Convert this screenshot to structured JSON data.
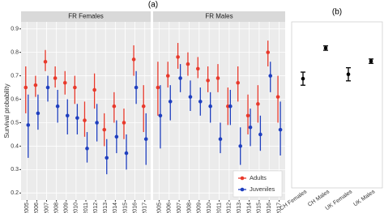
{
  "chart_data": [
    {
      "type": "errorbar",
      "panel_label": "(a)",
      "ylabel": "Survival probability",
      "x": [
        2005,
        2006,
        2007,
        2008,
        2009,
        2010,
        2011,
        2012,
        2013,
        2014,
        2015,
        2016,
        2017
      ],
      "xlim": [
        2004.4,
        2017.6
      ],
      "xticks": [
        2005,
        2006,
        2007,
        2008,
        2009,
        2010,
        2011,
        2012,
        2013,
        2014,
        2015,
        2016,
        2017
      ],
      "ylim": [
        0.17,
        0.93
      ],
      "yticks": [
        0.2,
        0.3,
        0.4,
        0.5,
        0.6,
        0.7,
        0.8,
        0.9
      ],
      "grid": true,
      "legend_position": "bottom right",
      "series": [
        {
          "name": "Adults",
          "color": "#e8392b"
        },
        {
          "name": "Juveniles",
          "color": "#1f3fbf"
        }
      ],
      "facets": [
        {
          "title": "FR Females",
          "values": [
            [
              0.65,
              0.66,
              0.76,
              0.69,
              0.67,
              0.65,
              0.51,
              0.64,
              0.47,
              0.57,
              0.5,
              0.77,
              0.57
            ],
            [
              0.49,
              0.54,
              0.65,
              0.57,
              0.53,
              0.52,
              0.39,
              0.5,
              0.35,
              0.44,
              0.37,
              0.65,
              0.43
            ]
          ],
          "lower": [
            [
              0.54,
              0.61,
              0.72,
              0.65,
              0.62,
              0.58,
              0.44,
              0.56,
              0.4,
              0.5,
              0.43,
              0.7,
              0.46
            ],
            [
              0.35,
              0.47,
              0.59,
              0.5,
              0.45,
              0.45,
              0.33,
              0.42,
              0.28,
              0.37,
              0.3,
              0.58,
              0.32
            ]
          ],
          "upper": [
            [
              0.74,
              0.7,
              0.81,
              0.74,
              0.72,
              0.7,
              0.59,
              0.71,
              0.54,
              0.63,
              0.56,
              0.83,
              0.66
            ],
            [
              0.62,
              0.62,
              0.7,
              0.64,
              0.6,
              0.58,
              0.46,
              0.58,
              0.43,
              0.51,
              0.45,
              0.72,
              0.54
            ]
          ]
        },
        {
          "title": "FR Males",
          "values": [
            [
              0.65,
              0.7,
              0.78,
              0.75,
              0.73,
              0.68,
              0.69,
              0.57,
              0.67,
              0.53,
              0.58,
              0.8,
              0.61
            ],
            [
              0.53,
              0.59,
              0.69,
              0.61,
              0.59,
              0.57,
              0.43,
              0.57,
              0.4,
              0.48,
              0.45,
              0.7,
              0.47
            ]
          ],
          "lower": [
            [
              0.53,
              0.65,
              0.73,
              0.7,
              0.69,
              0.63,
              0.63,
              0.49,
              0.59,
              0.45,
              0.5,
              0.74,
              0.5
            ],
            [
              0.39,
              0.51,
              0.63,
              0.55,
              0.53,
              0.5,
              0.37,
              0.49,
              0.32,
              0.4,
              0.38,
              0.63,
              0.36
            ]
          ],
          "upper": [
            [
              0.76,
              0.76,
              0.84,
              0.8,
              0.78,
              0.74,
              0.75,
              0.65,
              0.74,
              0.62,
              0.66,
              0.85,
              0.7
            ],
            [
              0.66,
              0.66,
              0.75,
              0.68,
              0.65,
              0.63,
              0.5,
              0.64,
              0.48,
              0.56,
              0.53,
              0.76,
              0.59
            ]
          ]
        }
      ]
    },
    {
      "type": "errorbar",
      "panel_label": "(b)",
      "categories": [
        "CH Females",
        "CH Males",
        "UK Females",
        "UK Males"
      ],
      "values": [
        0.67,
        0.81,
        0.69,
        0.75
      ],
      "lower": [
        0.64,
        0.8,
        0.66,
        0.74
      ],
      "upper": [
        0.7,
        0.82,
        0.72,
        0.76
      ],
      "color": "#000000",
      "ylim": [
        0.17,
        0.93
      ]
    }
  ]
}
